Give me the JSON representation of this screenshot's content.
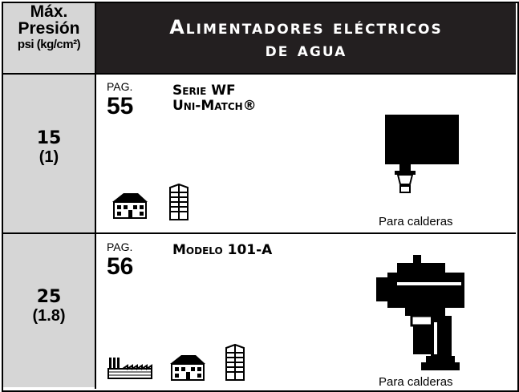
{
  "header": {
    "pressure_label": [
      "Máx.",
      "Presión",
      "psi (kg/cm²)"
    ],
    "title": [
      "Alimentadores eléctricos",
      "de agua"
    ]
  },
  "rows": [
    {
      "pressure": "15",
      "pressure_metric": "(1)",
      "page_label": "PAG.",
      "page": "55",
      "product": [
        "Serie WF",
        "Uni-Match®"
      ],
      "caption": "Para calderas"
    },
    {
      "pressure": "25",
      "pressure_metric": "(1.8)",
      "page_label": "PAG.",
      "page": "56",
      "product": [
        "Modelo 101-A"
      ],
      "caption": "Para calderas"
    }
  ]
}
